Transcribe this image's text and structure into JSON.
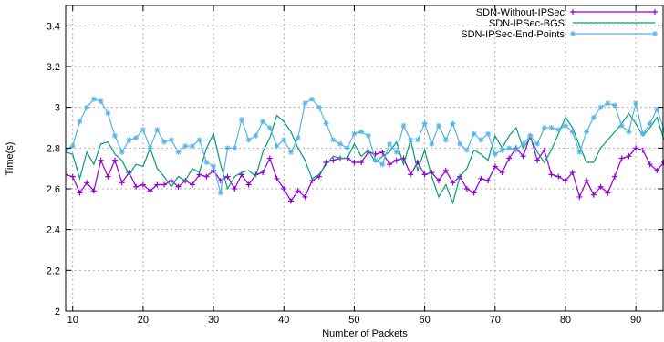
{
  "chart_data": {
    "type": "line",
    "title": "",
    "xlabel": "Number of Packets",
    "ylabel": "Time(s)",
    "xlim": [
      9,
      94
    ],
    "ylim": [
      2,
      3.5
    ],
    "xticks": [
      10,
      20,
      30,
      40,
      50,
      60,
      70,
      80,
      90
    ],
    "yticks": [
      2,
      2.2,
      2.4,
      2.6,
      2.8,
      3,
      3.2,
      3.4
    ],
    "grid": true,
    "legend": "top-right",
    "series": [
      {
        "name": "SDN-Without-IPSec",
        "color": "#9400d3",
        "marker": "plus",
        "x": [
          9,
          10,
          11,
          12,
          13,
          14,
          15,
          16,
          17,
          18,
          19,
          20,
          21,
          22,
          23,
          24,
          25,
          26,
          27,
          28,
          29,
          30,
          31,
          32,
          33,
          34,
          35,
          36,
          37,
          38,
          39,
          40,
          41,
          42,
          43,
          44,
          45,
          46,
          47,
          48,
          49,
          50,
          51,
          52,
          53,
          54,
          55,
          56,
          57,
          58,
          59,
          60,
          61,
          62,
          63,
          64,
          65,
          66,
          67,
          68,
          69,
          70,
          71,
          72,
          73,
          74,
          75,
          76,
          77,
          78,
          79,
          80,
          81,
          82,
          83,
          84,
          85,
          86,
          87,
          88,
          89,
          90,
          91,
          92,
          93,
          94
        ],
        "y": [
          2.67,
          2.66,
          2.58,
          2.63,
          2.59,
          2.74,
          2.66,
          2.74,
          2.63,
          2.68,
          2.61,
          2.62,
          2.59,
          2.62,
          2.62,
          2.64,
          2.61,
          2.64,
          2.62,
          2.67,
          2.66,
          2.69,
          2.64,
          2.66,
          2.6,
          2.67,
          2.62,
          2.67,
          2.68,
          2.75,
          2.65,
          2.6,
          2.54,
          2.59,
          2.56,
          2.64,
          2.66,
          2.73,
          2.74,
          2.75,
          2.75,
          2.73,
          2.73,
          2.78,
          2.77,
          2.78,
          2.72,
          2.74,
          2.75,
          2.67,
          2.73,
          2.67,
          2.68,
          2.64,
          2.69,
          2.63,
          2.66,
          2.6,
          2.58,
          2.65,
          2.64,
          2.71,
          2.68,
          2.75,
          2.8,
          2.76,
          2.86,
          2.74,
          2.79,
          2.67,
          2.66,
          2.64,
          2.68,
          2.56,
          2.64,
          2.57,
          2.61,
          2.58,
          2.66,
          2.75,
          2.76,
          2.8,
          2.79,
          2.72,
          2.69,
          2.73
        ]
      },
      {
        "name": "SDN-IPSec-BGS",
        "color": "#009e73",
        "marker": "none",
        "x": [
          9,
          10,
          11,
          12,
          13,
          14,
          15,
          16,
          17,
          18,
          19,
          20,
          21,
          22,
          23,
          24,
          25,
          26,
          27,
          28,
          29,
          30,
          31,
          32,
          33,
          34,
          35,
          36,
          37,
          38,
          39,
          40,
          41,
          42,
          43,
          44,
          45,
          46,
          47,
          48,
          49,
          50,
          51,
          52,
          53,
          54,
          55,
          56,
          57,
          58,
          59,
          60,
          61,
          62,
          63,
          64,
          65,
          66,
          67,
          68,
          69,
          70,
          71,
          72,
          73,
          74,
          75,
          76,
          77,
          78,
          79,
          80,
          81,
          82,
          83,
          84,
          85,
          86,
          87,
          88,
          89,
          90,
          91,
          92,
          93,
          94
        ],
        "y": [
          2.78,
          2.77,
          2.65,
          2.78,
          2.72,
          2.82,
          2.83,
          2.77,
          2.74,
          2.67,
          2.72,
          2.71,
          2.8,
          2.7,
          2.66,
          2.61,
          2.66,
          2.64,
          2.7,
          2.68,
          2.8,
          2.87,
          2.72,
          2.6,
          2.66,
          2.68,
          2.69,
          2.66,
          2.78,
          2.85,
          2.96,
          2.93,
          2.88,
          2.8,
          2.74,
          2.65,
          2.67,
          2.72,
          2.76,
          2.75,
          2.75,
          2.82,
          2.76,
          2.79,
          2.73,
          2.76,
          2.78,
          2.83,
          2.72,
          2.84,
          2.69,
          2.79,
          2.66,
          2.56,
          2.62,
          2.53,
          2.66,
          2.7,
          2.79,
          2.77,
          2.74,
          2.86,
          2.8,
          2.86,
          2.9,
          2.8,
          2.85,
          2.78,
          2.73,
          2.79,
          2.87,
          2.95,
          2.9,
          2.81,
          2.73,
          2.73,
          2.8,
          2.84,
          2.88,
          2.92,
          2.97,
          2.92,
          2.86,
          2.9,
          2.95,
          2.84
        ]
      },
      {
        "name": "SDN-IPSec-End-Points",
        "color": "#56b4e9",
        "marker": "star",
        "x": [
          9,
          10,
          11,
          12,
          13,
          14,
          15,
          16,
          17,
          18,
          19,
          20,
          21,
          22,
          23,
          24,
          25,
          26,
          27,
          28,
          29,
          30,
          31,
          32,
          33,
          34,
          35,
          36,
          37,
          38,
          39,
          40,
          41,
          42,
          43,
          44,
          45,
          46,
          47,
          48,
          49,
          50,
          51,
          52,
          53,
          54,
          55,
          56,
          57,
          58,
          59,
          60,
          61,
          62,
          63,
          64,
          65,
          66,
          67,
          68,
          69,
          70,
          71,
          72,
          73,
          74,
          75,
          76,
          77,
          78,
          79,
          80,
          81,
          82,
          83,
          84,
          85,
          86,
          87,
          88,
          89,
          90,
          91,
          92,
          93,
          94
        ],
        "y": [
          2.79,
          2.81,
          2.93,
          3.0,
          3.04,
          3.03,
          2.97,
          2.86,
          2.78,
          2.84,
          2.85,
          2.89,
          2.8,
          2.89,
          2.83,
          2.84,
          2.78,
          2.81,
          2.81,
          2.84,
          2.73,
          2.71,
          2.58,
          2.8,
          2.8,
          2.94,
          2.84,
          2.86,
          2.93,
          2.9,
          2.81,
          2.84,
          2.78,
          2.85,
          3.02,
          3.04,
          3.0,
          2.92,
          2.84,
          2.82,
          2.8,
          2.87,
          2.88,
          2.86,
          2.74,
          2.72,
          2.82,
          2.78,
          2.91,
          2.84,
          2.84,
          2.92,
          2.82,
          2.91,
          2.84,
          2.92,
          2.82,
          2.79,
          2.87,
          2.84,
          2.87,
          2.77,
          2.79,
          2.8,
          2.79,
          2.82,
          2.86,
          2.82,
          2.9,
          2.9,
          2.89,
          2.91,
          2.88,
          2.78,
          2.88,
          2.95,
          3.0,
          3.02,
          3.01,
          2.91,
          2.88,
          3.02,
          2.87,
          2.92,
          2.99,
          2.89
        ]
      }
    ]
  }
}
